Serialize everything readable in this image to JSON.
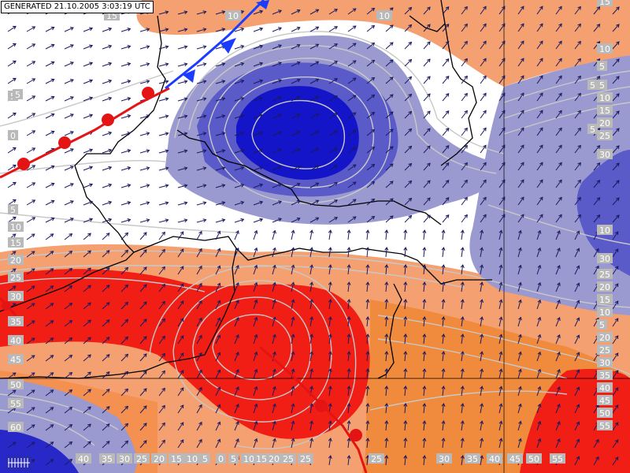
{
  "header": {
    "generated_label": "GENERATED 21.10.2005 3:03:19 UTC"
  },
  "colors": {
    "deep_blue": "#1414c8",
    "mid_blue": "#5a5ac8",
    "light_blue": "#9a9ad0",
    "white": "#ffffff",
    "light_orange": "#f4a070",
    "orange": "#f08a3c",
    "red": "#f01e14",
    "cold_front": "#1a3cff",
    "warm_front": "#e41414",
    "border": "#000000",
    "contour": "#c8c8c8",
    "wind": "#1a1a60"
  },
  "right_scale_labels": [
    "15",
    "10",
    "5",
    "5",
    "10",
    "15",
    "20",
    "25",
    "30",
    "30",
    "25",
    "20",
    "15",
    "10",
    "5",
    "20",
    "25",
    "30",
    "35",
    "40",
    "45",
    "50",
    "55"
  ],
  "bottom_scale_labels": [
    "40",
    "35",
    "30",
    "25",
    "20",
    "15",
    "10",
    "5",
    "0",
    "5",
    "10",
    "15",
    "20",
    "25",
    "25",
    "25",
    "30",
    "35",
    "40",
    "45",
    "50",
    "55"
  ],
  "left_scale_labels": [
    "5",
    "0",
    "5",
    "10",
    "15",
    "20",
    "25",
    "30",
    "35",
    "40",
    "45",
    "50",
    "55",
    "60"
  ],
  "map_labels": [
    "10",
    "15",
    "10",
    "5",
    "10",
    "5",
    "5"
  ]
}
